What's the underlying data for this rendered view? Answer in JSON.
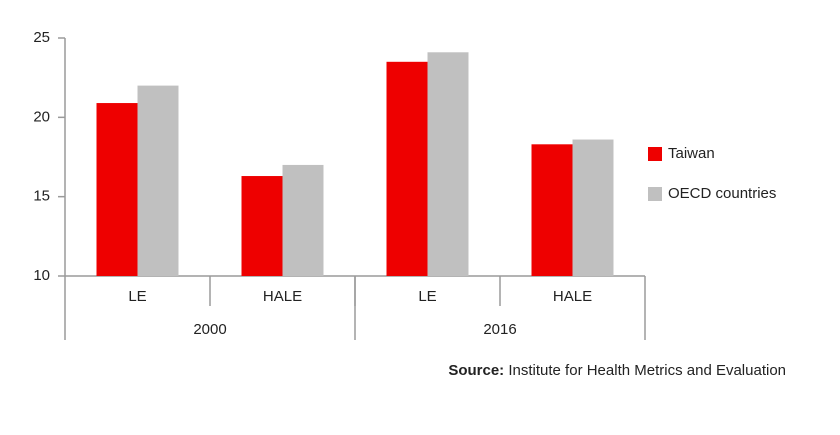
{
  "chart_data": {
    "type": "bar",
    "categories": [
      "LE",
      "HALE",
      "LE",
      "HALE"
    ],
    "category_groups": [
      "2000",
      "2016"
    ],
    "series": [
      {
        "name": "Taiwan",
        "color": "#ee0000",
        "values": [
          20.9,
          16.3,
          23.5,
          18.3
        ]
      },
      {
        "name": "OECD countries",
        "color": "#c0c0c0",
        "values": [
          22.0,
          17.0,
          24.1,
          18.6
        ]
      }
    ],
    "ylim": [
      10,
      25
    ],
    "yticks": [
      10,
      15,
      20,
      25
    ],
    "grid": false,
    "legend": "right",
    "source_label": "Source:",
    "source": "Institute for Health Metrics and Evaluation"
  }
}
